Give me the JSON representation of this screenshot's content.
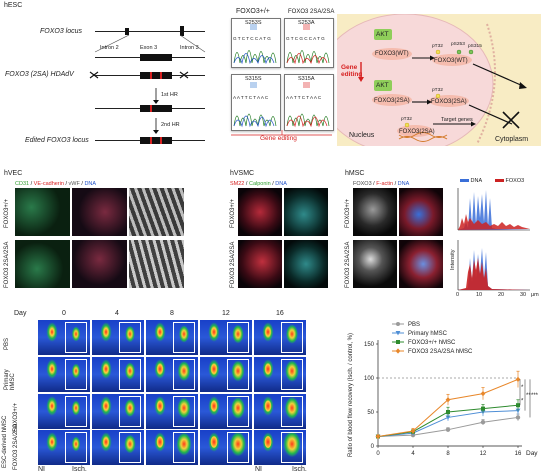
{
  "top_left": {
    "tag": "hESC",
    "locus_label": "FOXO3 locus",
    "intron2": "Intron 2",
    "exon3": "Exon 3",
    "intron3": "Intron 3",
    "hdadv_label": "FOXO3 (2SA) HDAdV",
    "hr1": "1st HR",
    "hr2": "2nd HR",
    "edited_label": "Edited FOXO3 locus"
  },
  "sequencing": {
    "wt_title": "FOXO3+/+",
    "mut_title": "FOXO3 2SA/2SA",
    "s253s": "S253S",
    "s253a": "S253A",
    "s315s": "S315S",
    "s315a": "S315A",
    "seq1_wt": "G T C T C C A T G",
    "seq1_mut": "G T C G C C A T G",
    "seq2_wt": "A A T T C T A A C",
    "seq2_mut": "A A T T C T A A C",
    "gene_editing": "Gene editing"
  },
  "pathway": {
    "akt": "AKT",
    "wt": "FOXO3(WT)",
    "mut": "FOXO3(2SA)",
    "p32": "pT32",
    "p253": "pS253",
    "p315": "pS315",
    "gene_editing": "Gene editing",
    "target_genes": "Target genes",
    "nucleus": "Nucleus",
    "cytoplasm": "Cytoplasm"
  },
  "hvec": {
    "tag": "hVEC",
    "stain_cd31": "CD31",
    "stain_vecad": "VE-cadherin",
    "stain_vwf": "vWF",
    "stain_dna": "DNA",
    "row1": "FOXO3+/+",
    "row2": "FOXO3 2SA/2SA"
  },
  "hvsmc": {
    "tag": "hVSMC",
    "stain_sm22": "SM22",
    "stain_calponin": "Calponin",
    "stain_dna": "DNA",
    "row1": "FOXO3+/+",
    "row2": "FOXO3 2SA/2SA"
  },
  "hmsc": {
    "tag": "hMSC",
    "stain_foxo3": "FOXO3",
    "stain_factin": "F-actin",
    "stain_dna": "DNA",
    "row1": "FOXO3+/+",
    "row2": "FOXO3 2SA/2SA"
  },
  "intensity_plot": {
    "legend_dna": "DNA",
    "legend_foxo3": "FOXO3",
    "ylabel": "Intensity",
    "xticks": [
      "0",
      "10",
      "20",
      "30"
    ],
    "xunit": "μm"
  },
  "doppler": {
    "day_label": "Day",
    "days": [
      "0",
      "4",
      "8",
      "12",
      "16"
    ],
    "rows": [
      "PBS",
      "Primary hMSC",
      "FOXO3+/+",
      "FOXO3 2SA/2SA"
    ],
    "group_label": "ESC-derived hMSC",
    "ni": "NI",
    "isch": "Isch."
  },
  "chart_data": {
    "type": "line",
    "x": [
      0,
      4,
      8,
      12,
      16
    ],
    "xlabel": "Day",
    "ylabel": "Ratio of blood flow recovery (Isch. / control, %)",
    "yticks": [
      "0",
      "50",
      "100",
      "150"
    ],
    "ylim": [
      0,
      150
    ],
    "reference_line": 100,
    "legend_placement": "top-left",
    "series": [
      {
        "name": "PBS",
        "color": "#9a9a9a",
        "marker": "circle",
        "values": [
          14,
          16,
          24,
          35,
          42
        ],
        "err": [
          2,
          2,
          3,
          4,
          5
        ]
      },
      {
        "name": "Primary hMSC",
        "color": "#4f8fd6",
        "marker": "triangle-down",
        "values": [
          14,
          19,
          42,
          50,
          52
        ],
        "err": [
          2,
          3,
          5,
          6,
          6
        ]
      },
      {
        "name": "FOXO3+/+ hMSC",
        "color": "#2e8b2e",
        "marker": "square",
        "values": [
          14,
          21,
          50,
          55,
          60
        ],
        "err": [
          2,
          3,
          7,
          6,
          8
        ]
      },
      {
        "name": "FOXO3 2SA/2SA hMSC",
        "color": "#e8872a",
        "marker": "diamond",
        "values": [
          14,
          22,
          68,
          77,
          98
        ],
        "err": [
          2,
          4,
          8,
          9,
          12
        ]
      }
    ],
    "significance": [
      "*",
      "**",
      "*",
      "***"
    ]
  },
  "colors": {
    "accent_red": "#d62020",
    "dna_blue": "#3a6fd8",
    "foxo3_red": "#cc2222",
    "akt_green": "#8fce5a",
    "nucleus_pink": "#f7d9d9",
    "cytoplasm_yellow": "#f8ecc4"
  }
}
